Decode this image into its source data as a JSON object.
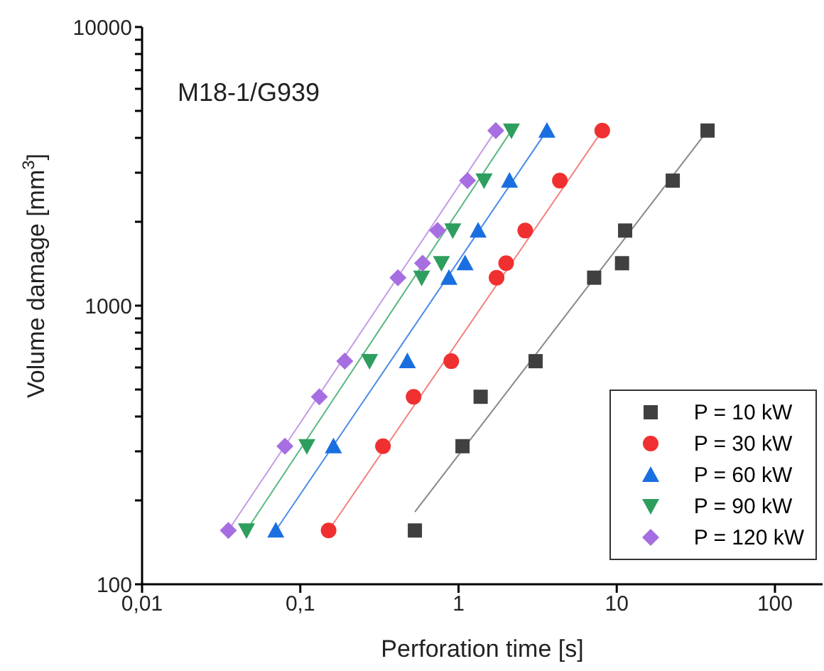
{
  "chart_data": {
    "type": "scatter",
    "xlabel": "Perforation time [s]",
    "ylabel": "Volume damage [mm$^{3}$]",
    "annotations": [
      "M18-1/G939"
    ],
    "log": "xy",
    "grid": false,
    "legend": "bottom right",
    "xlim": [
      0.01,
      200
    ],
    "xticks": [
      {
        "value": 0.01,
        "label": "0,01"
      },
      {
        "value": 0.1,
        "label": "0,1"
      },
      {
        "value": 1,
        "label": "1"
      },
      {
        "value": 10,
        "label": "10"
      },
      {
        "value": 100,
        "label": "100"
      }
    ],
    "ylim": [
      100,
      10000
    ],
    "yticks": [
      100,
      {
        "value": 200,
        "label": null
      },
      {
        "value": 300,
        "label": null
      },
      {
        "value": 400,
        "label": null
      },
      {
        "value": 500,
        "label": null
      },
      {
        "value": 600,
        "label": null
      },
      {
        "value": 700,
        "label": null
      },
      {
        "value": 800,
        "label": null
      },
      {
        "value": 900,
        "label": null
      },
      1000,
      {
        "value": 2000,
        "label": null
      },
      {
        "value": 3000,
        "label": null
      },
      {
        "value": 4000,
        "label": null
      },
      {
        "value": 5000,
        "label": null
      },
      {
        "value": 6000,
        "label": null
      },
      {
        "value": 7000,
        "label": null
      },
      {
        "value": 8000,
        "label": null
      },
      {
        "value": 9000,
        "label": null
      },
      10000
    ],
    "series": [
      {
        "name": "P = 10 kW",
        "marker": "square",
        "color": "#404040",
        "x": [
          0.53,
          1.06,
          1.38,
          3.07,
          7.2,
          10.8,
          11.3,
          22.6,
          37.5
        ],
        "values": [
          156,
          313,
          471,
          632,
          1260,
          1420,
          1860,
          2810,
          4250
        ]
      },
      {
        "name": "P = 30 kW",
        "marker": "circle",
        "color": "#f03030",
        "x": [
          0.151,
          0.333,
          0.52,
          0.9,
          1.74,
          2.0,
          2.64,
          4.37,
          8.1
        ],
        "values": [
          156,
          313,
          471,
          632,
          1260,
          1420,
          1860,
          2810,
          4250
        ]
      },
      {
        "name": "P = 60 kW",
        "marker": "triangle",
        "color": "#1a6fe0",
        "x": [
          0.07,
          0.162,
          0.475,
          0.87,
          1.1,
          1.33,
          2.1,
          3.62
        ],
        "values": [
          156,
          313,
          632,
          1260,
          1420,
          1860,
          2810,
          4250
        ]
      },
      {
        "name": "P = 90 kW",
        "marker": "triangle-down",
        "color": "#2e9e5e",
        "x": [
          0.0457,
          0.11,
          0.274,
          0.585,
          0.78,
          0.92,
          1.45,
          2.16
        ],
        "values": [
          156,
          313,
          632,
          1260,
          1420,
          1860,
          2810,
          4250
        ]
      },
      {
        "name": "P = 120 kW",
        "marker": "diamond",
        "color": "#a66ee0",
        "x": [
          0.0351,
          0.08,
          0.132,
          0.191,
          0.414,
          0.593,
          0.738,
          1.14,
          1.72
        ],
        "values": [
          156,
          313,
          471,
          632,
          1260,
          1420,
          1860,
          2810,
          4250
        ]
      },
      {
        "type": "line",
        "marker": "none",
        "color": "#888888",
        "x": [
          0.53,
          37.5
        ],
        "values": [
          182,
          4250
        ]
      },
      {
        "type": "line",
        "marker": "none",
        "color": "#f58080",
        "x": [
          0.151,
          8.1
        ],
        "values": [
          156,
          4250
        ]
      },
      {
        "type": "line",
        "marker": "none",
        "color": "#4a8ae8",
        "x": [
          0.07,
          3.62
        ],
        "values": [
          156,
          4250
        ]
      },
      {
        "type": "line",
        "marker": "none",
        "color": "#5ab880",
        "x": [
          0.0457,
          2.16
        ],
        "values": [
          156,
          4250
        ]
      },
      {
        "type": "line",
        "marker": "none",
        "color": "#c49ae8",
        "x": [
          0.0351,
          1.72
        ],
        "values": [
          156,
          4250
        ]
      }
    ]
  }
}
